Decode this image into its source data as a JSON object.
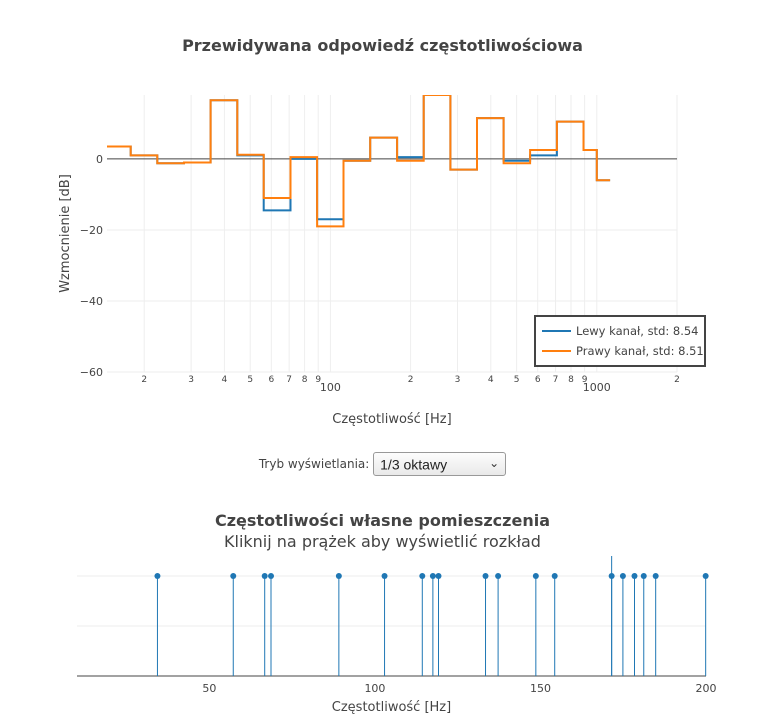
{
  "chart_data": [
    {
      "type": "line",
      "title": "Przewidywana odpowiedź częstotliwościowa",
      "xlabel": "Częstotliwość [Hz]",
      "ylabel": "Wzmocnienie [dB]",
      "x_scale": "log",
      "xlim": [
        14.5,
        2000
      ],
      "ylim": [
        -60,
        18
      ],
      "y_ticks": [
        0,
        -20,
        -40,
        -60
      ],
      "y_tick_labels": [
        "0",
        "−20",
        "−40",
        "−60"
      ],
      "x_major_ticks": [
        100,
        1000
      ],
      "x_major_labels": [
        "100",
        "1000"
      ],
      "x_minor_ticks": [
        20,
        30,
        40,
        50,
        60,
        70,
        80,
        90,
        200,
        300,
        400,
        500,
        600,
        700,
        800,
        900,
        2000
      ],
      "x_minor_labels": [
        "2",
        "3",
        "4",
        "5",
        "6",
        "7",
        "8",
        "9",
        "2",
        "3",
        "4",
        "5",
        "6",
        "7",
        "8",
        "9",
        "2"
      ],
      "grid": true,
      "legend_position": "bottom-right",
      "series": [
        {
          "name": "Lewy kanał, std: 8.54",
          "color": "#1f77b4",
          "step_edges": [
            14.5,
            17.8,
            22.4,
            28.2,
            35.5,
            44.7,
            56.2,
            70.8,
            89.1,
            112,
            141,
            178,
            224,
            282,
            355,
            447,
            562,
            708,
            891,
            1000
          ],
          "values": [
            3.5,
            1,
            -1.2,
            -1,
            16.5,
            1,
            -14.5,
            0,
            -17,
            -0.5,
            6,
            0.5,
            18,
            -3,
            11.5,
            -0.5,
            1,
            10.5,
            2.5,
            -6
          ]
        },
        {
          "name": "Prawy kanał, std: 8.51",
          "color": "#ff7f0e",
          "step_edges": [
            14.5,
            17.8,
            22.4,
            28.2,
            35.5,
            44.7,
            56.2,
            70.8,
            89.1,
            112,
            141,
            178,
            224,
            282,
            355,
            447,
            562,
            708,
            891,
            1000
          ],
          "values": [
            3.5,
            1,
            -1.2,
            -1,
            16.5,
            1.2,
            -11,
            0.5,
            -19,
            -0.5,
            6,
            -0.5,
            18,
            -3,
            11.5,
            -1.2,
            2.5,
            10.5,
            2.5,
            -6
          ]
        }
      ]
    },
    {
      "type": "scatter",
      "title": "Częstotliwości własne pomieszczenia",
      "subtitle": "Kliknij na prążek aby wyświetlić rozkład",
      "xlabel": "Częstotliwość [Hz]",
      "xlim": [
        10,
        200
      ],
      "x_ticks": [
        50,
        100,
        150,
        200
      ],
      "x_tick_labels": [
        "50",
        "100",
        "150",
        "200"
      ],
      "color": "#1f77b4",
      "x": [
        34.3,
        57.2,
        66.7,
        68.6,
        89.1,
        102.9,
        114.3,
        117.5,
        119.2,
        133.4,
        137.2,
        148.6,
        154.3,
        171.5,
        174.9,
        178.4,
        181.2,
        184.8,
        199.9
      ],
      "y": [
        1,
        1,
        1,
        1,
        1,
        1,
        1,
        1,
        1,
        1,
        1,
        1,
        1,
        1,
        1,
        1,
        1,
        1,
        1
      ]
    }
  ],
  "controls": {
    "mode_label": "Tryb wyświetlania:",
    "mode_value": "1/3 oktawy"
  }
}
